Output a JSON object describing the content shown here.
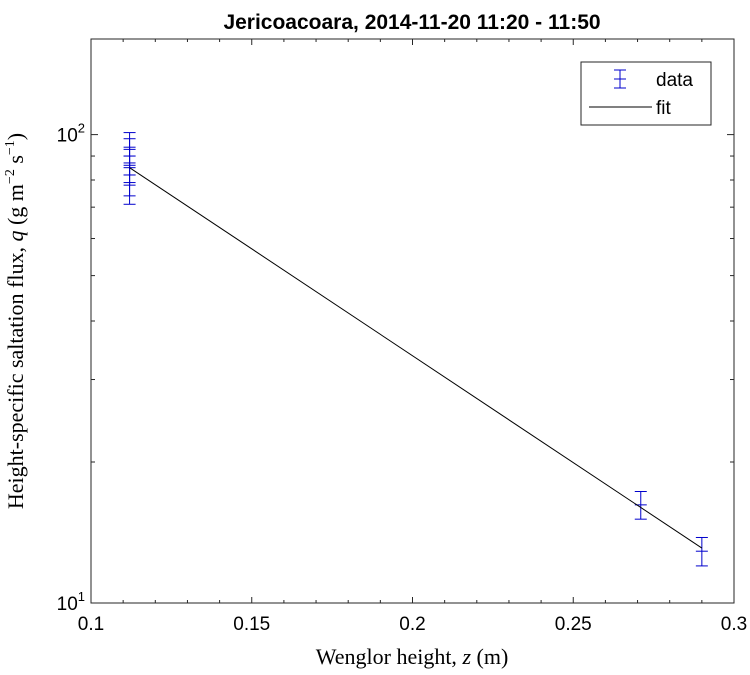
{
  "chart_data": {
    "type": "scatter",
    "title": "Jericoacoara, 2014-11-20 11:20 - 11:50",
    "xlabel": {
      "prefix": "Wenglor height, ",
      "var": "z",
      "suffix": " (m)"
    },
    "ylabel": {
      "prefix": "Height-specific saltation flux, ",
      "var": "q",
      "unit_open": " (g m",
      "exp1": "−2",
      "unit_mid": " s",
      "exp2": "−1",
      "unit_close": ")"
    },
    "xlim": [
      0.1,
      0.3
    ],
    "ylim": [
      10,
      160
    ],
    "yscale": "log",
    "xticks": [
      0.1,
      0.15,
      0.2,
      0.25,
      0.3
    ],
    "xtick_labels": [
      "0.1",
      "0.15",
      "0.2",
      "0.25",
      "0.3"
    ],
    "yticks": [
      {
        "base": "10",
        "exp": "1",
        "value": 10
      },
      {
        "base": "10",
        "exp": "2",
        "value": 100
      }
    ],
    "legend": {
      "position": "top-right",
      "entries": [
        "data",
        "fit"
      ]
    },
    "series": [
      {
        "name": "data",
        "style": "errorbar",
        "color": "#0000CC",
        "points": [
          {
            "x": 0.112,
            "y": 93,
            "yerr": 8
          },
          {
            "x": 0.112,
            "y": 90,
            "yerr": 8
          },
          {
            "x": 0.112,
            "y": 86,
            "yerr": 8
          },
          {
            "x": 0.112,
            "y": 82,
            "yerr": 8
          },
          {
            "x": 0.112,
            "y": 79,
            "yerr": 8
          },
          {
            "x": 0.271,
            "y": 16.2,
            "yerr": 1.1
          },
          {
            "x": 0.29,
            "y": 12.9,
            "yerr": 0.9
          }
        ]
      },
      {
        "name": "fit",
        "style": "line",
        "color": "#000000",
        "x": [
          0.112,
          0.29
        ],
        "y": [
          85,
          13.1
        ]
      }
    ]
  }
}
